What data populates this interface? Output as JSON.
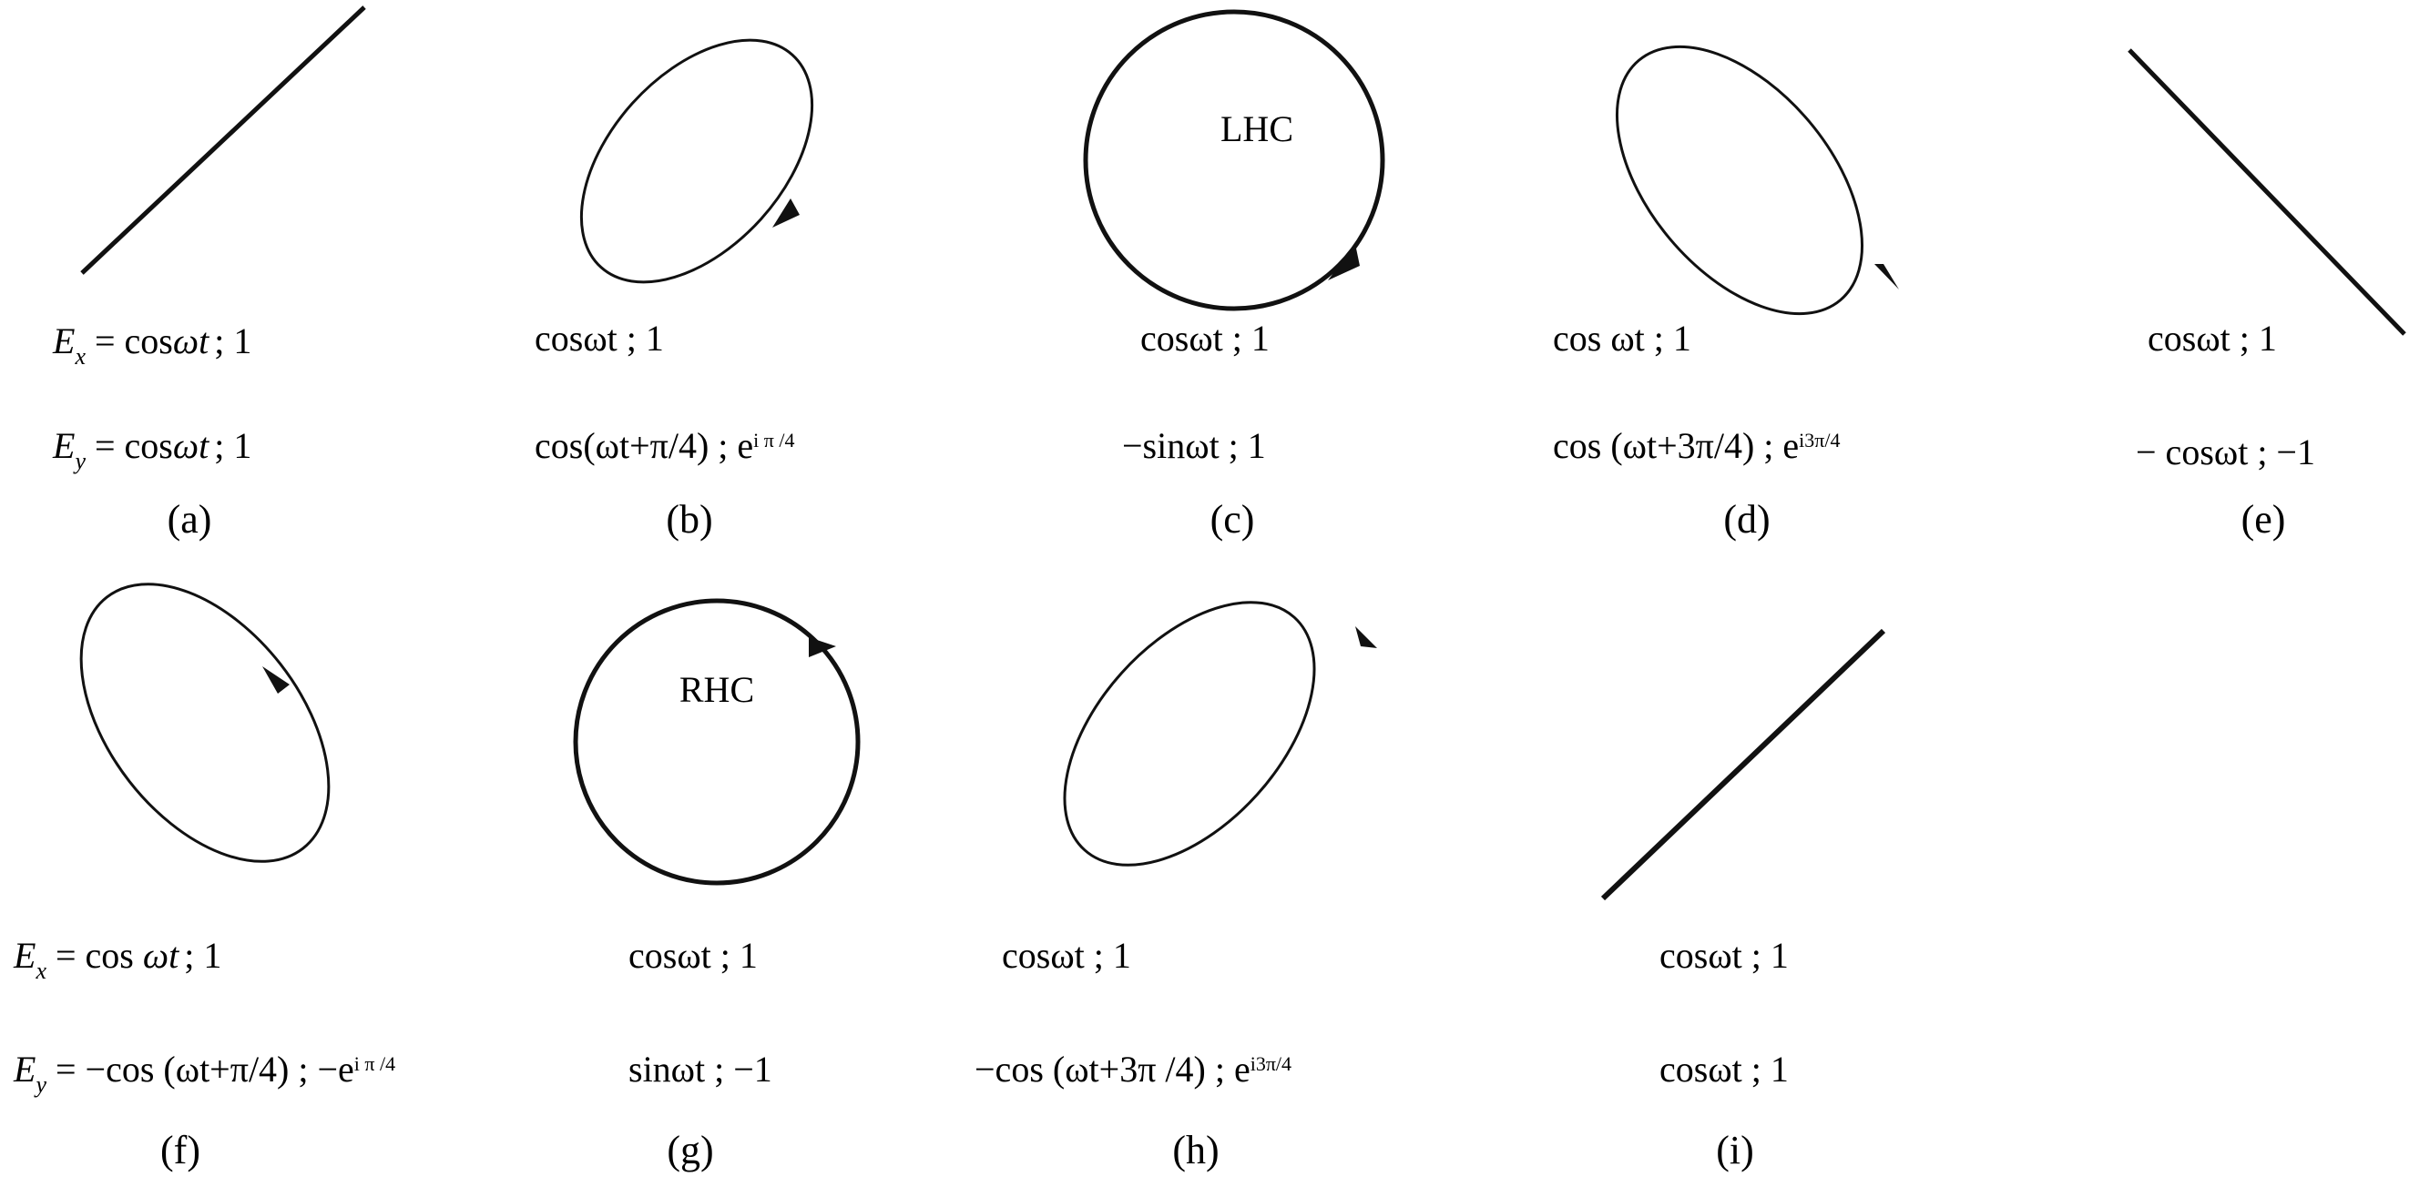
{
  "panels": [
    {
      "id": "a",
      "label": "(a)",
      "shape": "line",
      "direction": "rising",
      "ex_prefix": "E",
      "ex_sub": "x",
      "ex_eq": " = cos",
      "ex_var": "ωt",
      "ex_tail": "; 1",
      "ey_prefix": "E",
      "ey_sub": "y",
      "ey_eq": " = cos",
      "ey_var": "ωt",
      "ey_tail": "; 1"
    },
    {
      "id": "b",
      "label": "(b)",
      "shape": "ellipse",
      "tilt": "rising",
      "arrow": "clockwise-bottom",
      "ex": "cosωt ; 1",
      "ey_text": "cos(ωt+π/4) ; e",
      "ey_sup": "i π /4"
    },
    {
      "id": "c",
      "label": "(c)",
      "shape": "circle",
      "inner_label": "LHC",
      "arrow": "clockwise-bottom",
      "ex": "cosωt ; 1",
      "ey": "−sinωt ; 1"
    },
    {
      "id": "d",
      "label": "(d)",
      "shape": "ellipse",
      "tilt": "falling",
      "arrow": "clockwise-bottom",
      "ex": "cos ωt ; 1",
      "ey_text": "cos (ωt+3π/4) ; e",
      "ey_sup": "i3π/4"
    },
    {
      "id": "e",
      "label": "(e)",
      "shape": "line",
      "direction": "falling",
      "ex": "cosωt ; 1",
      "ey": "− cosωt ; −1"
    },
    {
      "id": "f",
      "label": "(f)",
      "shape": "ellipse",
      "tilt": "falling",
      "arrow": "counterclockwise-top",
      "ex_prefix": "E",
      "ex_sub": "x",
      "ex_eq": " = cos ",
      "ex_var": "ωt",
      "ex_tail": "; 1",
      "ey_prefix": "E",
      "ey_sub": "y",
      "ey_eq": " = −cos (ωt+π/4) ; −e",
      "ey_sup": "i π /4"
    },
    {
      "id": "g",
      "label": "(g)",
      "shape": "circle",
      "inner_label": "RHC",
      "arrow": "counterclockwise-top",
      "ex": "cosωt ; 1",
      "ey": "sinωt ; −1"
    },
    {
      "id": "h",
      "label": "(h)",
      "shape": "ellipse",
      "tilt": "rising",
      "arrow": "counterclockwise-top",
      "ex": "cosωt ; 1",
      "ey_text": "−cos (ωt+3π /4) ; e",
      "ey_sup": "i3π/4"
    },
    {
      "id": "i",
      "label": "(i)",
      "shape": "line",
      "direction": "rising",
      "ex": "cosωt ; 1",
      "ey": "cosωt ; 1"
    }
  ]
}
